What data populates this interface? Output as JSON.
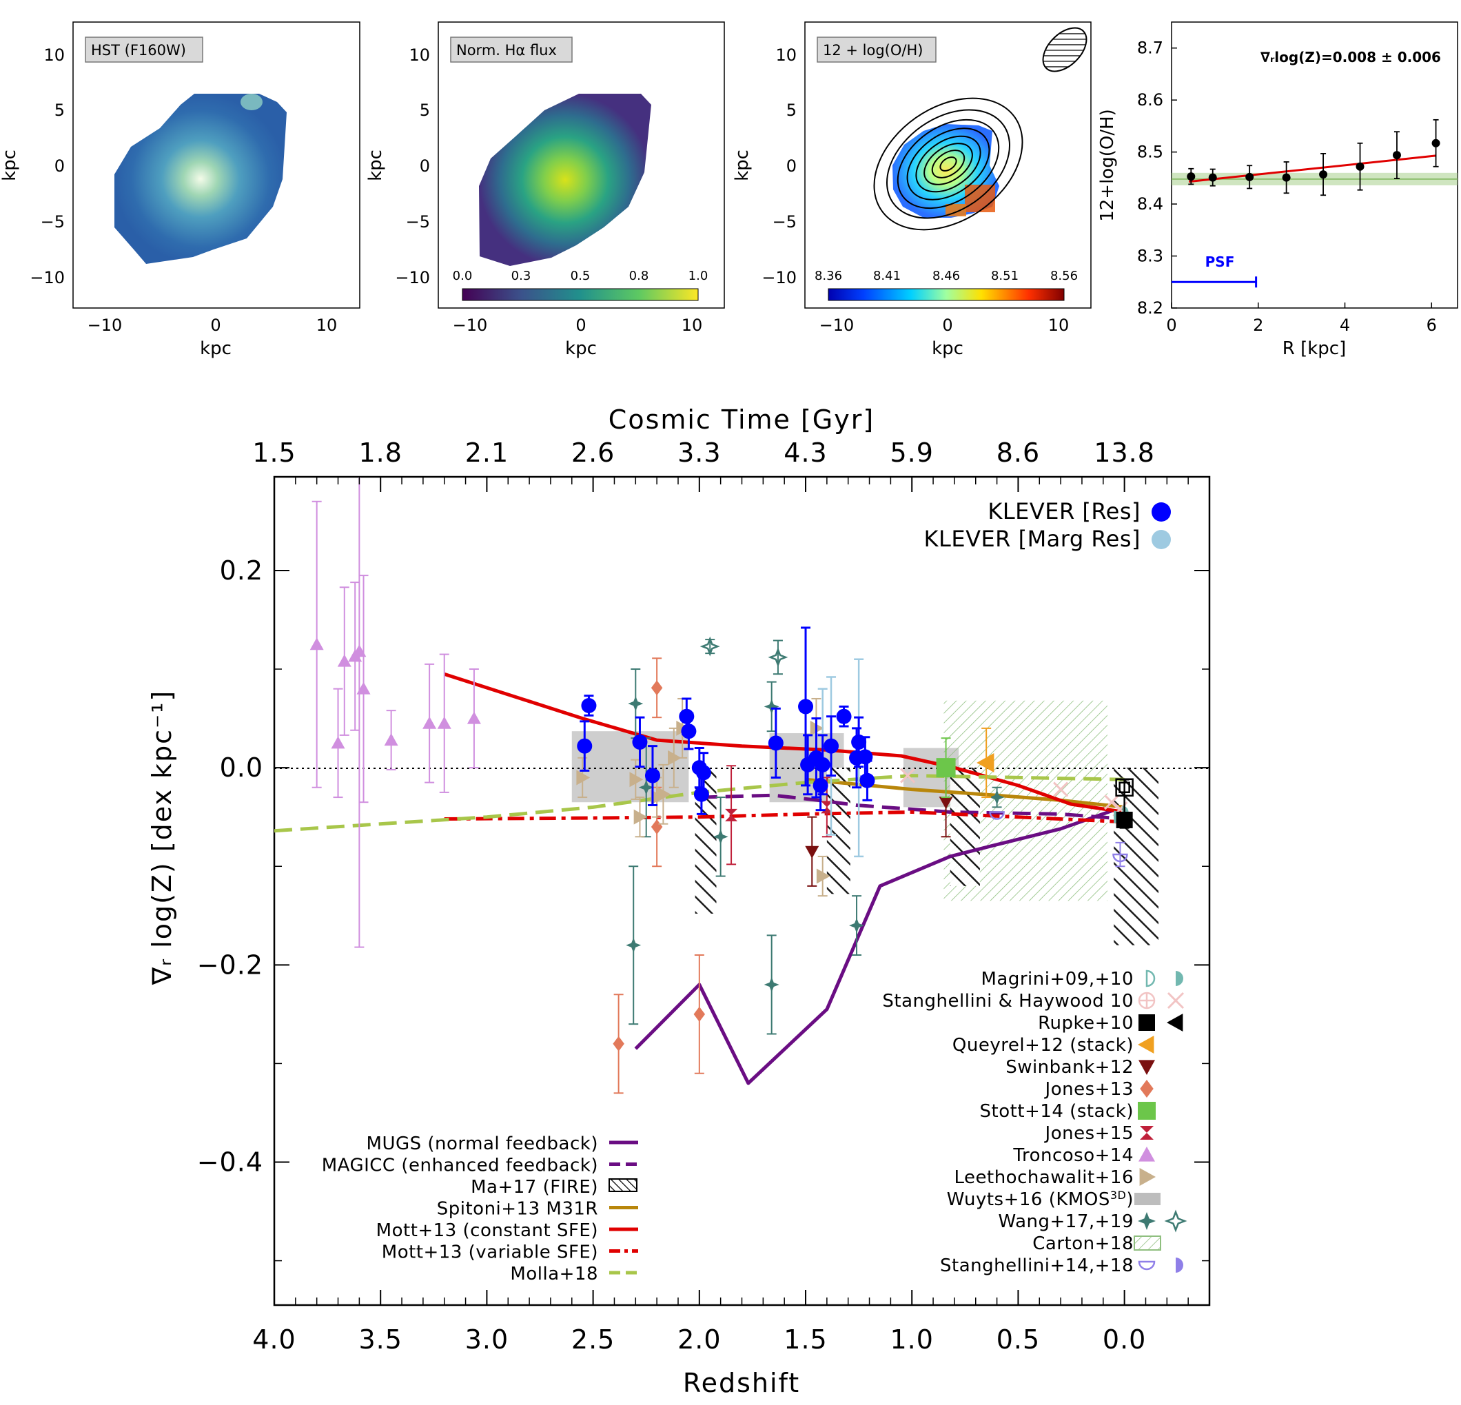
{
  "chart_data": [
    {
      "type": "heatmap",
      "panel": "a",
      "map_label": "HST (F160W)",
      "xlabel": "kpc",
      "ylabel": "kpc",
      "xlim": [
        -13,
        13
      ],
      "ylim": [
        -13,
        13
      ],
      "xticks": [
        "−10",
        "0",
        "10"
      ],
      "yticks": [
        "10",
        "5",
        "0",
        "−5",
        "−10"
      ]
    },
    {
      "type": "heatmap",
      "panel": "b",
      "map_label": "Norm. Hα flux",
      "xlabel": "kpc",
      "ylabel": "kpc",
      "xlim": [
        -13,
        13
      ],
      "ylim": [
        -13,
        13
      ],
      "xticks": [
        "−10",
        "0",
        "10"
      ],
      "yticks": [
        "10",
        "5",
        "0",
        "−5",
        "−10"
      ],
      "colorbar_ticks": [
        "0.0",
        "0.3",
        "0.5",
        "0.8",
        "1.0"
      ]
    },
    {
      "type": "heatmap",
      "panel": "c",
      "map_label": "12 + log(O/H)",
      "xlabel": "kpc",
      "ylabel": "kpc",
      "xlim": [
        -13,
        13
      ],
      "ylim": [
        -13,
        13
      ],
      "xticks": [
        "−10",
        "0",
        "10"
      ],
      "yticks": [
        "10",
        "5",
        "0",
        "−5",
        "−10"
      ],
      "colorbar_ticks": [
        "8.36",
        "8.41",
        "8.46",
        "8.51",
        "8.56"
      ]
    },
    {
      "type": "scatter",
      "panel": "d",
      "annotation": "∇ᵣlog(Z)=0.008 ± 0.006",
      "psf_label": "PSF",
      "psf_extent": [
        0,
        1.95
      ],
      "psf_y": 8.25,
      "xlabel": "R [kpc]",
      "ylabel": "12+log(O/H)",
      "xlim": [
        0,
        6.6
      ],
      "ylim": [
        8.2,
        8.75
      ],
      "xticks": [
        "0",
        "2",
        "4",
        "6"
      ],
      "yticks": [
        "8.7",
        "8.6",
        "8.5",
        "8.4",
        "8.3",
        "8.2"
      ],
      "points": [
        {
          "x": 0.45,
          "y": 8.453,
          "err": 0.015
        },
        {
          "x": 0.95,
          "y": 8.451,
          "err": 0.016
        },
        {
          "x": 1.8,
          "y": 8.452,
          "err": 0.022
        },
        {
          "x": 2.65,
          "y": 8.451,
          "err": 0.03
        },
        {
          "x": 3.5,
          "y": 8.457,
          "err": 0.04
        },
        {
          "x": 4.35,
          "y": 8.472,
          "err": 0.045
        },
        {
          "x": 5.2,
          "y": 8.494,
          "err": 0.045
        },
        {
          "x": 6.1,
          "y": 8.517,
          "err": 0.045
        }
      ],
      "fit": {
        "x": [
          0.4,
          6.1
        ],
        "y": [
          8.443,
          8.493
        ]
      },
      "band": {
        "center": 8.448,
        "half_width": 0.012
      }
    },
    {
      "type": "scatter",
      "panel": "main",
      "title_top": "Cosmic Time [Gyr]",
      "xlabel": "Redshift",
      "ylabel": "∇ᵣ log(Z) [dex kpc⁻¹]",
      "xlim": [
        4.0,
        -0.4
      ],
      "ylim": [
        -0.545,
        0.295
      ],
      "xticks": [
        "4.0",
        "3.5",
        "3.0",
        "2.5",
        "2.0",
        "1.5",
        "1.0",
        "0.5",
        "0.0"
      ],
      "yticks": [
        "0.2",
        "0.0",
        "−0.2",
        "−0.4"
      ],
      "top_ticks": [
        {
          "z": 4.0,
          "label": "1.5"
        },
        {
          "z": 3.5,
          "label": "1.8"
        },
        {
          "z": 3.0,
          "label": "2.1"
        },
        {
          "z": 2.5,
          "label": "2.6"
        },
        {
          "z": 2.0,
          "label": "3.3"
        },
        {
          "z": 1.5,
          "label": "4.3"
        },
        {
          "z": 1.0,
          "label": "5.9"
        },
        {
          "z": 0.5,
          "label": "8.6"
        },
        {
          "z": 0.0,
          "label": "13.8"
        }
      ],
      "colors": {
        "klever": "#0000ff",
        "klever_marg": "#9ecae1",
        "mugs": "#6a0d83",
        "mott": "#e00000",
        "spitoni": "#b8860b",
        "molla": "#a8c64a",
        "troncoso": "#d08fdf",
        "jones13": "#e2795a",
        "jones15": "#c0203a",
        "swinbank": "#7a1010",
        "wang": "#3d7a72",
        "leetho": "#c8b08c",
        "stott": "#6cc64a",
        "queyrel": "#f0a020",
        "stangh": "#8f7fe8",
        "magrini": "#72b8b0",
        "carton": "#8fbf7f",
        "wuyts": "#bdbdbd",
        "stangh_hay": "#f2c4c4"
      },
      "series": [
        {
          "name": "KLEVER [Res]",
          "points": [
            {
              "z": 2.54,
              "y": 0.022,
              "err": 0.025
            },
            {
              "z": 2.52,
              "y": 0.063,
              "err": 0.01
            },
            {
              "z": 2.28,
              "y": 0.026,
              "err": 0.025
            },
            {
              "z": 2.22,
              "y": -0.008,
              "err": 0.03
            },
            {
              "z": 2.06,
              "y": 0.052,
              "err": 0.018
            },
            {
              "z": 2.05,
              "y": 0.037,
              "err": 0.018
            },
            {
              "z": 2.0,
              "y": 0.0,
              "err": 0.02
            },
            {
              "z": 1.99,
              "y": -0.027,
              "err": 0.02
            },
            {
              "z": 1.98,
              "y": -0.005,
              "err": 0.02
            },
            {
              "z": 1.64,
              "y": 0.025,
              "err": 0.035
            },
            {
              "z": 1.5,
              "y": 0.062,
              "err": 0.08
            },
            {
              "z": 1.49,
              "y": 0.003,
              "err": 0.03
            },
            {
              "z": 1.45,
              "y": 0.01,
              "err": 0.04
            },
            {
              "z": 1.43,
              "y": -0.018,
              "err": 0.025
            },
            {
              "z": 1.42,
              "y": 0.003,
              "err": 0.03
            },
            {
              "z": 1.38,
              "y": 0.022,
              "err": 0.03
            },
            {
              "z": 1.32,
              "y": 0.052,
              "err": 0.01
            },
            {
              "z": 1.26,
              "y": 0.01,
              "err": 0.03
            },
            {
              "z": 1.25,
              "y": 0.026,
              "err": 0.025
            },
            {
              "z": 1.22,
              "y": 0.011,
              "err": 0.02
            },
            {
              "z": 1.21,
              "y": -0.013,
              "err": 0.02
            }
          ]
        },
        {
          "name": "KLEVER [Marg Res]",
          "points": [
            {
              "z": 1.38,
              "y": 0.012,
              "err": 0.08
            },
            {
              "z": 1.25,
              "y": 0.01,
              "err": 0.1
            },
            {
              "z": 1.42,
              "y": 0.03,
              "err": 0.05
            }
          ]
        },
        {
          "name": "Troncoso+14",
          "points": [
            {
              "z": 3.8,
              "y": 0.125,
              "err": 0.145
            },
            {
              "z": 3.7,
              "y": 0.025,
              "err": 0.055
            },
            {
              "z": 3.67,
              "y": 0.108,
              "err": 0.075
            },
            {
              "z": 3.62,
              "y": 0.113,
              "err": 0.075
            },
            {
              "z": 3.6,
              "y": 0.118,
              "err": 0.3
            },
            {
              "z": 3.58,
              "y": 0.08,
              "err": 0.115
            },
            {
              "z": 3.45,
              "y": 0.028,
              "err": 0.03
            },
            {
              "z": 3.27,
              "y": 0.045,
              "err": 0.06
            },
            {
              "z": 3.2,
              "y": 0.045,
              "err": 0.07
            },
            {
              "z": 3.06,
              "y": 0.05,
              "err": 0.05
            }
          ]
        },
        {
          "name": "Jones+13",
          "points": [
            {
              "z": 2.38,
              "y": -0.28,
              "err": 0.05
            },
            {
              "z": 2.2,
              "y": 0.081,
              "err": 0.03
            },
            {
              "z": 2.2,
              "y": -0.06,
              "err": 0.04
            },
            {
              "z": 2.0,
              "y": -0.25,
              "err": 0.06
            }
          ]
        },
        {
          "name": "Jones+15",
          "points": [
            {
              "z": 1.85,
              "y": -0.048,
              "err": 0.05
            },
            {
              "z": 1.4,
              "y": -0.04,
              "err": 0.03
            }
          ]
        },
        {
          "name": "Swinbank+12",
          "points": [
            {
              "z": 1.47,
              "y": -0.085,
              "err": 0.035
            },
            {
              "z": 0.84,
              "y": -0.035,
              "err": 0.035
            }
          ]
        },
        {
          "name": "Wang+17,+19",
          "points": [
            {
              "z": 2.31,
              "y": -0.18,
              "err": 0.08
            },
            {
              "z": 2.3,
              "y": 0.065,
              "err": 0.035
            },
            {
              "z": 2.25,
              "y": -0.02,
              "err": 0.05
            },
            {
              "z": 1.9,
              "y": -0.07,
              "err": 0.04
            },
            {
              "z": 1.66,
              "y": -0.22,
              "err": 0.05
            },
            {
              "z": 1.66,
              "y": 0.062,
              "err": 0.025
            },
            {
              "z": 1.26,
              "y": -0.16,
              "err": 0.03
            },
            {
              "z": 0.6,
              "y": -0.03,
              "err": 0.01
            }
          ]
        },
        {
          "name": "Wang+17,+19 (open)",
          "points": [
            {
              "z": 1.95,
              "y": 0.123,
              "err": 0.007
            },
            {
              "z": 1.63,
              "y": 0.112,
              "err": 0.017
            }
          ]
        },
        {
          "name": "Leethochawalit+16",
          "points": [
            {
              "z": 2.55,
              "y": -0.01,
              "err": 0.02
            },
            {
              "z": 2.3,
              "y": -0.012,
              "err": 0.02
            },
            {
              "z": 2.28,
              "y": -0.05,
              "err": 0.02
            },
            {
              "z": 2.2,
              "y": -0.03,
              "err": 0.02
            },
            {
              "z": 2.17,
              "y": -0.027,
              "err": 0.03
            },
            {
              "z": 2.12,
              "y": 0.01,
              "err": 0.03
            },
            {
              "z": 2.08,
              "y": 0.04,
              "err": 0.03
            },
            {
              "z": 1.42,
              "y": -0.11,
              "err": 0.02
            },
            {
              "z": 1.45,
              "y": 0.04,
              "err": 0.03
            }
          ]
        },
        {
          "name": "Wuyts+16 (KMOS3D)",
          "boxes": [
            {
              "z0": 2.6,
              "z1": 2.05,
              "y0": -0.035,
              "y1": 0.037
            },
            {
              "z0": 1.67,
              "z1": 1.32,
              "y0": -0.035,
              "y1": 0.035
            },
            {
              "z0": 1.04,
              "z1": 0.78,
              "y0": -0.04,
              "y1": 0.02
            }
          ]
        },
        {
          "name": "Ma+17 (FIRE)",
          "boxes": [
            {
              "z0": 2.02,
              "z1": 1.92,
              "y0": -0.148,
              "y1": 0.0
            },
            {
              "z0": 1.4,
              "z1": 1.29,
              "y0": -0.128,
              "y1": 0.0
            },
            {
              "z0": 0.82,
              "z1": 0.68,
              "y0": -0.12,
              "y1": 0.0
            },
            {
              "z0": 0.05,
              "z1": -0.16,
              "y0": -0.18,
              "y1": 0.0
            }
          ]
        },
        {
          "name": "Carton+18",
          "boxes": [
            {
              "z0": 0.85,
              "z1": 0.08,
              "y0": -0.135,
              "y1": 0.068
            }
          ]
        },
        {
          "name": "Stott+14 (stack)",
          "points": [
            {
              "z": 0.84,
              "y": 0.0,
              "err": 0.03
            }
          ]
        },
        {
          "name": "Queyrel+12 (stack)",
          "points": [
            {
              "z": 0.65,
              "y": 0.005,
              "err": 0.035
            }
          ]
        },
        {
          "name": "Rupke+10",
          "points": [
            {
              "z": 0.0,
              "y": -0.053,
              "err": 0.005
            },
            {
              "z": 0.0,
              "y": -0.02,
              "err": 0.005
            }
          ]
        },
        {
          "name": "Stanghellini & Haywood 10",
          "points": [
            {
              "z": 1.02,
              "y": -0.008
            },
            {
              "z": 0.3,
              "y": -0.022
            },
            {
              "z": 0.06,
              "y": -0.035
            },
            {
              "z": 0.02,
              "y": -0.042
            }
          ]
        },
        {
          "name": "Stanghellini+14,+18",
          "points": [
            {
              "z": 0.6,
              "y": -0.045
            },
            {
              "z": 0.02,
              "y": -0.088,
              "err": 0.012
            }
          ]
        },
        {
          "name": "Magrini+09,+10",
          "points": [
            {
              "z": 0.05,
              "y": -0.05
            },
            {
              "z": 0.01,
              "y": -0.045
            }
          ]
        }
      ],
      "models": [
        {
          "name": "MUGS (normal feedback)",
          "style": "solid",
          "color": "mugs",
          "z": [
            2.3,
            2.0,
            1.77,
            1.4,
            1.15,
            0.82,
            0.6,
            0.3,
            0.05
          ],
          "y": [
            -0.285,
            -0.22,
            -0.32,
            -0.245,
            -0.12,
            -0.09,
            -0.078,
            -0.062,
            -0.043
          ]
        },
        {
          "name": "MAGICC (enhanced feedback)",
          "style": "dashed",
          "color": "mugs",
          "z": [
            2.0,
            1.65,
            1.44,
            1.26,
            0.82,
            0.3,
            0.0
          ],
          "y": [
            -0.03,
            -0.028,
            -0.033,
            -0.038,
            -0.045,
            -0.047,
            -0.052
          ]
        },
        {
          "name": "Spitoni+13 M31R",
          "style": "solid",
          "color": "spitoni",
          "z": [
            1.5,
            1.0,
            0.6,
            0.3,
            0.0
          ],
          "y": [
            -0.012,
            -0.022,
            -0.028,
            -0.033,
            -0.04
          ]
        },
        {
          "name": "Mott+13 (constant SFE)",
          "style": "solid",
          "color": "mott",
          "z": [
            3.2,
            2.55,
            2.2,
            1.8,
            1.4,
            1.05,
            0.8,
            0.5,
            0.25,
            0.0
          ],
          "y": [
            0.095,
            0.05,
            0.028,
            0.022,
            0.018,
            0.012,
            0.0,
            -0.018,
            -0.037,
            -0.045
          ]
        },
        {
          "name": "Mott+13 (variable SFE)",
          "style": "dashdot",
          "color": "mott",
          "z": [
            3.2,
            2.5,
            2.0,
            1.5,
            1.0,
            0.5,
            0.0
          ],
          "y": [
            -0.052,
            -0.051,
            -0.05,
            -0.047,
            -0.045,
            -0.05,
            -0.055
          ]
        },
        {
          "name": "Molla+18",
          "style": "dashed",
          "color": "molla",
          "z": [
            4.0,
            3.0,
            2.5,
            2.0,
            1.5,
            1.0,
            0.5,
            0.0
          ],
          "y": [
            -0.064,
            -0.05,
            -0.04,
            -0.025,
            -0.015,
            -0.008,
            -0.01,
            -0.012
          ]
        }
      ],
      "legend_data": [
        "KLEVER [Res]",
        "KLEVER [Marg Res]"
      ],
      "legend_obs": [
        "Magrini+09,+10",
        "Stanghellini & Haywood 10",
        "Rupke+10",
        "Queyrel+12 (stack)",
        "Swinbank+12",
        "Jones+13",
        "Stott+14 (stack)",
        "Jones+15",
        "Troncoso+14",
        "Leethochawalit+16",
        "Wuyts+16 (KMOS",
        "Wang+17,+19",
        "Carton+18",
        "Stanghellini+14,+18"
      ],
      "legend_obs_sup": "3D",
      "legend_obs_close": ")",
      "legend_models": [
        "MUGS (normal feedback)",
        "MAGICC (enhanced feedback)",
        "Ma+17 (FIRE)",
        "Spitoni+13 M31R",
        "Mott+13 (constant SFE)",
        "Mott+13 (variable SFE)",
        "Molla+18"
      ]
    }
  ]
}
